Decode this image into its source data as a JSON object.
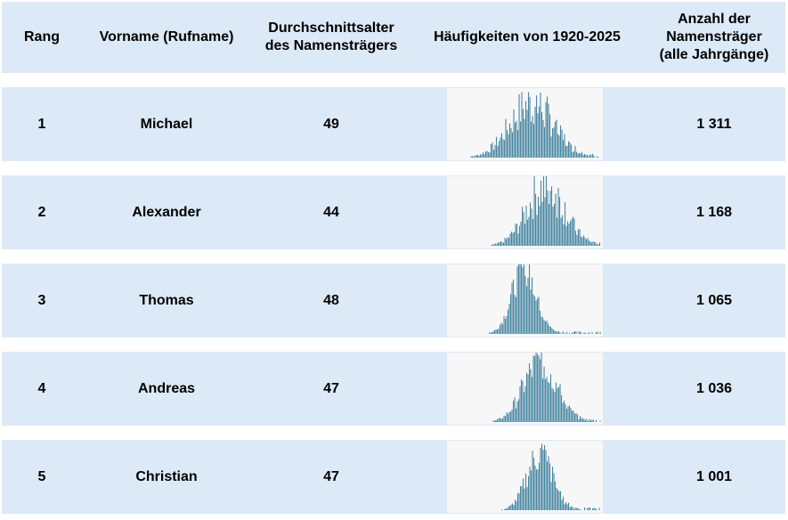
{
  "table": {
    "headers": {
      "rank": "Rang",
      "name": "Vorname (Rufname)",
      "age": "Durchschnittsalter\ndes Namensträgers",
      "freq": "Häufigkeiten von 1920-2025",
      "count": "Anzahl der\nNamensträger\n(alle Jahrgänge)"
    },
    "rows": [
      {
        "rank": "1",
        "name": "Michael",
        "age": "49",
        "count": "1 311"
      },
      {
        "rank": "2",
        "name": "Alexander",
        "age": "44",
        "count": "1 168"
      },
      {
        "rank": "3",
        "name": "Thomas",
        "age": "48",
        "count": "1 065"
      },
      {
        "rank": "4",
        "name": "Andreas",
        "age": "47",
        "count": "1 036"
      },
      {
        "rank": "5",
        "name": "Christian",
        "age": "47",
        "count": "1 001"
      }
    ]
  },
  "colors": {
    "row_background": "#dce9f7",
    "sparkline_background": "#f7f7f7",
    "bar_color": "#4a87a3"
  }
}
